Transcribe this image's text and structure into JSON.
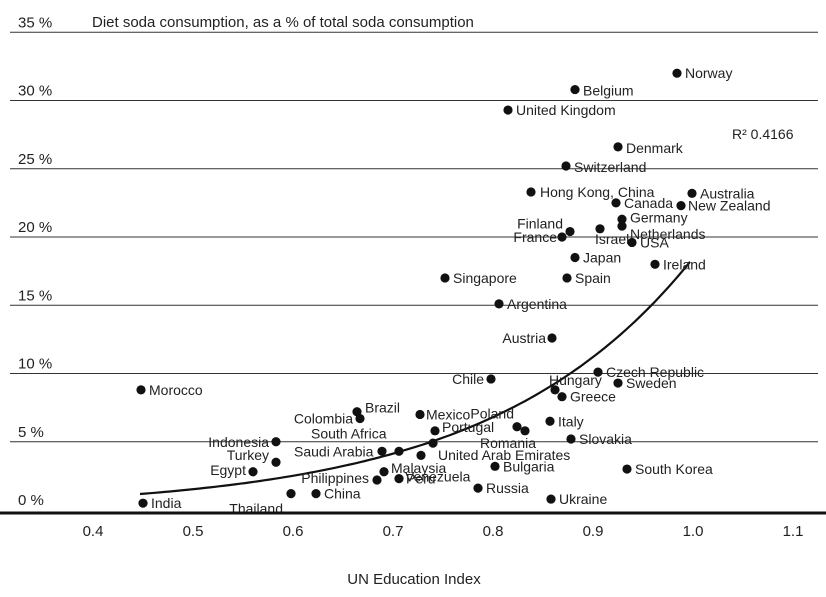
{
  "chart_data": {
    "type": "scatter",
    "title": "Diet soda consumption, as a % of total soda consumption",
    "xlabel": "UN Education Index",
    "ylabel": "",
    "xlim": [
      0.35,
      1.12
    ],
    "ylim": [
      0,
      35
    ],
    "x_ticks": [
      "0.4",
      "0.5",
      "0.6",
      "0.7",
      "0.8",
      "0.9",
      "1.0",
      "1.1"
    ],
    "y_ticks": [
      "0 %",
      "5 %",
      "10 %",
      "15 %",
      "20 %",
      "25 %",
      "30 %",
      "35 %"
    ],
    "grid": "horizontal",
    "annotation": "R² 0.4166",
    "trendline": "exponential",
    "points": [
      {
        "label": "Norway",
        "x": 0.984,
        "y": 32.0
      },
      {
        "label": "Belgium",
        "x": 0.882,
        "y": 30.8
      },
      {
        "label": "United Kingdom",
        "x": 0.815,
        "y": 29.3
      },
      {
        "label": "Denmark",
        "x": 0.925,
        "y": 26.6
      },
      {
        "label": "Switzerland",
        "x": 0.873,
        "y": 25.2
      },
      {
        "label": "Hong Kong, China",
        "x": 0.838,
        "y": 23.3
      },
      {
        "label": "Australia",
        "x": 0.999,
        "y": 23.2
      },
      {
        "label": "Canada",
        "x": 0.923,
        "y": 22.5
      },
      {
        "label": "New Zealand",
        "x": 0.988,
        "y": 22.3
      },
      {
        "label": "Germany",
        "x": 0.929,
        "y": 21.3
      },
      {
        "label": "Finland",
        "x": 0.877,
        "y": 20.4
      },
      {
        "label": "Israel",
        "x": 0.907,
        "y": 20.6
      },
      {
        "label": "Netherlands",
        "x": 0.929,
        "y": 20.8
      },
      {
        "label": "France",
        "x": 0.869,
        "y": 20.0
      },
      {
        "label": "USA",
        "x": 0.939,
        "y": 19.6
      },
      {
        "label": "Japan",
        "x": 0.882,
        "y": 18.5
      },
      {
        "label": "Ireland",
        "x": 0.962,
        "y": 18.0
      },
      {
        "label": "Singapore",
        "x": 0.752,
        "y": 17.0
      },
      {
        "label": "Spain",
        "x": 0.874,
        "y": 17.0
      },
      {
        "label": "Argentina",
        "x": 0.806,
        "y": 15.1
      },
      {
        "label": "Austria",
        "x": 0.859,
        "y": 12.6
      },
      {
        "label": "Czech Republic",
        "x": 0.905,
        "y": 10.1
      },
      {
        "label": "Chile",
        "x": 0.798,
        "y": 9.6
      },
      {
        "label": "Hungary",
        "x": 0.862,
        "y": 8.8
      },
      {
        "label": "Sweden",
        "x": 0.925,
        "y": 9.3
      },
      {
        "label": "Morocco",
        "x": 0.448,
        "y": 8.8
      },
      {
        "label": "Greece",
        "x": 0.869,
        "y": 8.3
      },
      {
        "label": "Brazil",
        "x": 0.664,
        "y": 7.2
      },
      {
        "label": "Colombia",
        "x": 0.667,
        "y": 6.7
      },
      {
        "label": "Mexico",
        "x": 0.727,
        "y": 7.0
      },
      {
        "label": "Poland",
        "x": 0.824,
        "y": 6.1
      },
      {
        "label": "Italy",
        "x": 0.857,
        "y": 6.5
      },
      {
        "label": "South Africa",
        "x": 0.706,
        "y": 4.3
      },
      {
        "label": "Portugal",
        "x": 0.742,
        "y": 5.8
      },
      {
        "label": "Romania",
        "x": 0.832,
        "y": 5.8
      },
      {
        "label": "Slovakia",
        "x": 0.878,
        "y": 5.2
      },
      {
        "label": "Indonesia",
        "x": 0.583,
        "y": 5.0
      },
      {
        "label": "Saudi Arabia",
        "x": 0.689,
        "y": 4.3
      },
      {
        "label": "United Arab Emirates",
        "x": 0.74,
        "y": 4.9
      },
      {
        "label": "Turkey",
        "x": 0.583,
        "y": 3.5
      },
      {
        "label": "Egypt",
        "x": 0.56,
        "y": 2.8
      },
      {
        "label": "Philippines",
        "x": 0.684,
        "y": 2.2
      },
      {
        "label": "Malaysia",
        "x": 0.691,
        "y": 2.8
      },
      {
        "label": "Peru",
        "x": 0.706,
        "y": 2.3
      },
      {
        "label": "Bulgaria",
        "x": 0.802,
        "y": 3.2
      },
      {
        "label": "South Korea",
        "x": 0.934,
        "y": 3.0
      },
      {
        "label": "Russia",
        "x": 0.785,
        "y": 1.6
      },
      {
        "label": "China",
        "x": 0.623,
        "y": 1.2
      },
      {
        "label": "Venezuela",
        "x": 0.728,
        "y": 4.0
      },
      {
        "label": "Thailand",
        "x": 0.598,
        "y": 1.2
      },
      {
        "label": "Ukraine",
        "x": 0.858,
        "y": 0.8
      },
      {
        "label": "India",
        "x": 0.45,
        "y": 0.5
      }
    ]
  }
}
